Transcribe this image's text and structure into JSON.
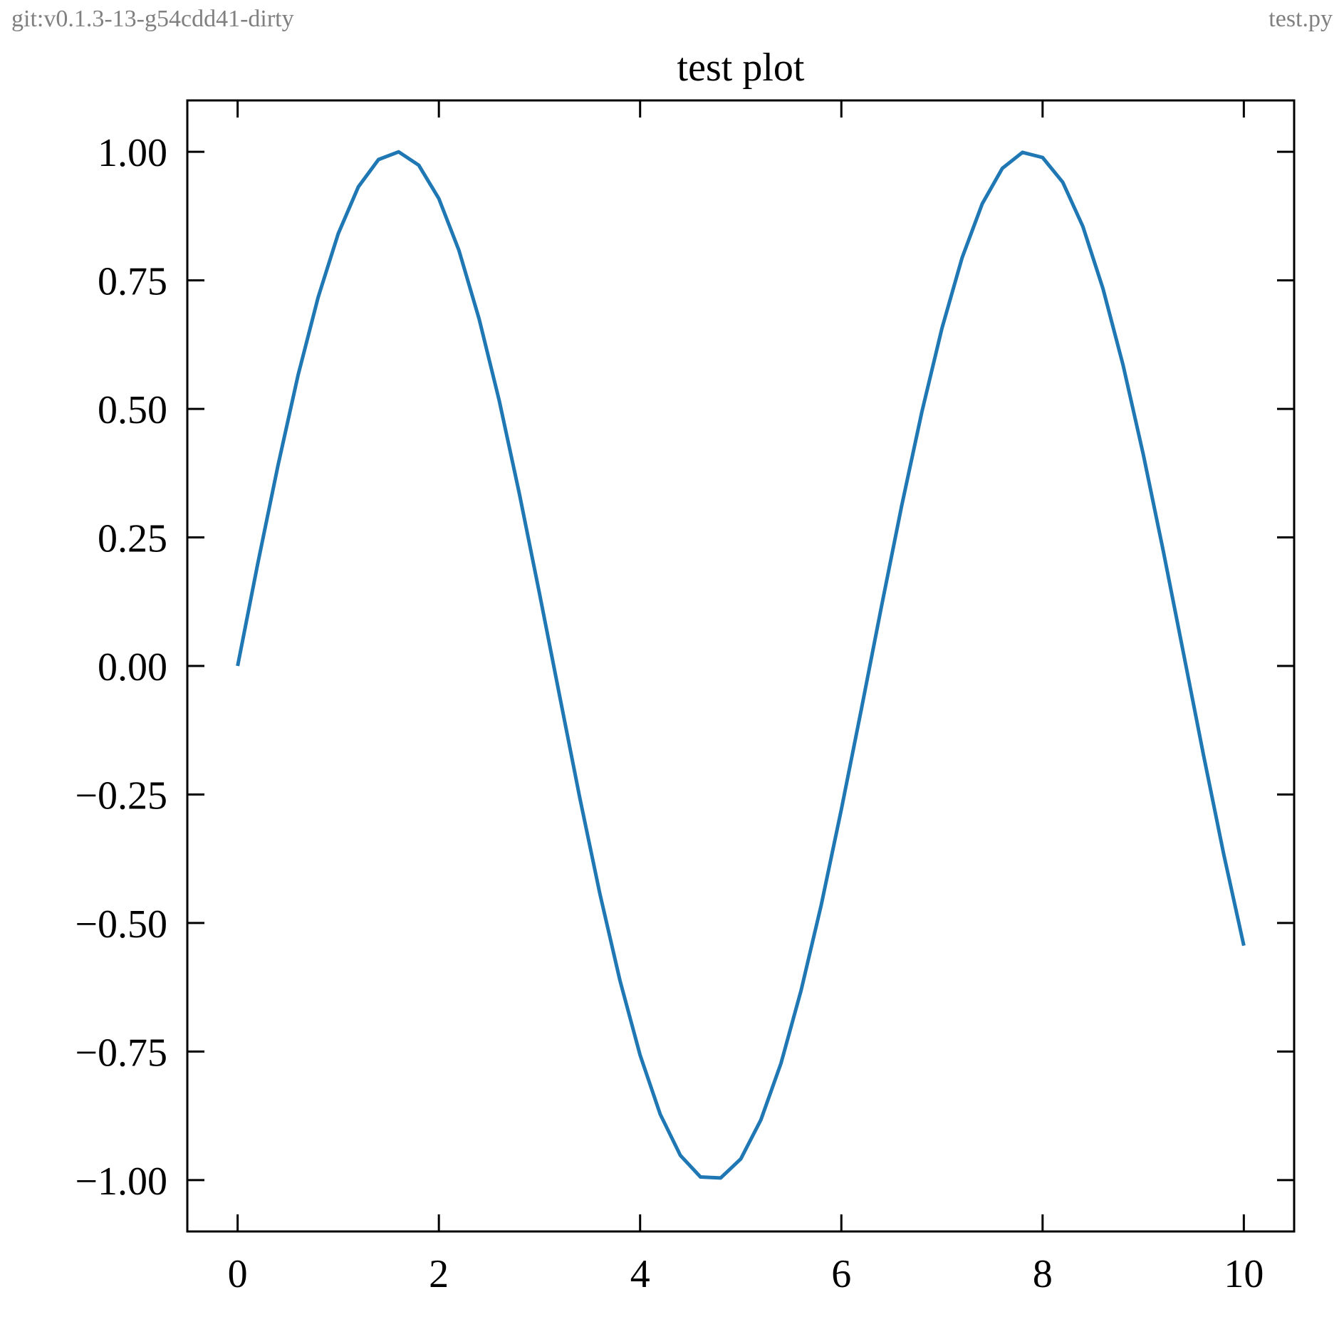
{
  "header": {
    "left_text": "git:v0.1.3-13-g54cdd41-dirty",
    "right_text": "test.py"
  },
  "chart_data": {
    "type": "line",
    "title": "test plot",
    "xlabel": "",
    "ylabel": "",
    "xlim": [
      -0.5,
      10.5
    ],
    "ylim": [
      -1.1,
      1.1
    ],
    "xticks": [
      0,
      2,
      4,
      6,
      8,
      10
    ],
    "xtick_labels": [
      "0",
      "2",
      "4",
      "6",
      "8",
      "10"
    ],
    "yticks": [
      1.0,
      0.75,
      0.5,
      0.25,
      0.0,
      -0.25,
      -0.5,
      -0.75,
      -1.0
    ],
    "ytick_labels": [
      "1.00",
      "0.75",
      "0.50",
      "0.25",
      "0.00",
      "−0.25",
      "−0.50",
      "−0.75",
      "−1.00"
    ],
    "grid": false,
    "series": [
      {
        "color": "#1f77b4",
        "x": [
          0.0,
          0.2,
          0.4,
          0.6,
          0.8,
          1.0,
          1.2,
          1.4,
          1.6,
          1.8,
          2.0,
          2.2,
          2.4,
          2.6,
          2.8,
          3.0,
          3.2,
          3.4,
          3.6,
          3.8,
          4.0,
          4.2,
          4.4,
          4.6,
          4.8,
          5.0,
          5.2,
          5.4,
          5.6,
          5.8,
          6.0,
          6.2,
          6.4,
          6.6,
          6.8,
          7.0,
          7.2,
          7.4,
          7.6,
          7.8,
          8.0,
          8.2,
          8.4,
          8.6,
          8.8,
          9.0,
          9.2,
          9.4,
          9.6,
          9.8,
          10.0
        ],
        "y": [
          0.0,
          0.199,
          0.389,
          0.565,
          0.717,
          0.841,
          0.932,
          0.985,
          1.0,
          0.974,
          0.909,
          0.808,
          0.675,
          0.516,
          0.335,
          0.141,
          -0.058,
          -0.256,
          -0.443,
          -0.612,
          -0.757,
          -0.872,
          -0.952,
          -0.994,
          -0.996,
          -0.959,
          -0.883,
          -0.773,
          -0.631,
          -0.465,
          -0.279,
          -0.083,
          0.117,
          0.312,
          0.494,
          0.657,
          0.794,
          0.899,
          0.968,
          0.999,
          0.989,
          0.941,
          0.855,
          0.734,
          0.585,
          0.412,
          0.223,
          0.025,
          -0.174,
          -0.366,
          -0.544
        ]
      }
    ]
  }
}
